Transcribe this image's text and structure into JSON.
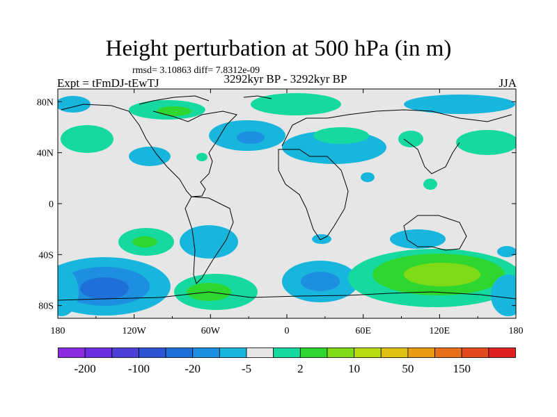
{
  "title": "Height perturbation at 500 hPa (in m)",
  "stats_text": "rmsd= 3.10863 diff= 7.8312e-09",
  "left_label": "Expt = tFmDJ-tEwTJ",
  "center_label": "3292kyr BP - 3292kyr BP",
  "right_label": "JJA",
  "map": {
    "projection": "cylindrical-equidistant",
    "lon_range": [
      -180,
      180
    ],
    "lat_range": [
      -90,
      90
    ],
    "y_ticks": [
      "80N",
      "40N",
      "0",
      "40S",
      "80S"
    ],
    "x_ticks": [
      "180",
      "120W",
      "60W",
      "0",
      "60E",
      "120E",
      "180"
    ],
    "background_color": "#e6e6e6"
  },
  "colorbar": {
    "colors": [
      "#8a2be2",
      "#6a2fe0",
      "#4b3fd8",
      "#2e54d6",
      "#1f6fd9",
      "#1e8fe0",
      "#18b6dc",
      "#e6e6e6",
      "#16d9a0",
      "#2fd62f",
      "#7fda18",
      "#b8dc12",
      "#e0c010",
      "#e89a10",
      "#e8701a",
      "#e44a20",
      "#e02020"
    ],
    "labels": [
      "-200",
      "-100",
      "-20",
      "-5",
      "2",
      "10",
      "50",
      "150"
    ]
  }
}
